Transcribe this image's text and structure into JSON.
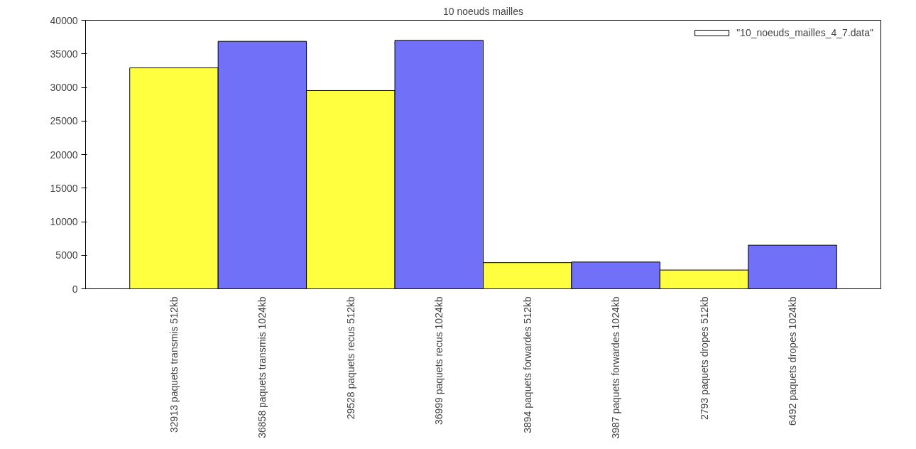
{
  "chart_data": {
    "type": "bar",
    "title": "10 noeuds mailles",
    "categories": [
      "32913 paquets transmis 512kb",
      "36858 paquets transmis 1024kb",
      "29528 paquets recus 512kb",
      "36999 paquets recus 1024kb",
      "3894 paquets forwardes 512kb",
      "3987 paquets forwardes 1024kb",
      "2793 paquets dropes 512kb",
      "6492 paquets dropes 1024kb"
    ],
    "series": [
      {
        "name": "\"10_noeuds_mailles_4_7.data\"",
        "color": "#ffffff",
        "colors": [
          "#ffff40",
          "#7070f8",
          "#ffff40",
          "#7070f8",
          "#ffff40",
          "#7070f8",
          "#ffff40",
          "#7070f8"
        ],
        "values": [
          32913,
          36858,
          29528,
          36999,
          3894,
          3987,
          2793,
          6492
        ]
      }
    ],
    "ylim": [
      0,
      40000
    ],
    "yticks": [
      0,
      5000,
      10000,
      15000,
      20000,
      25000,
      30000,
      35000,
      40000
    ],
    "grid": false,
    "legend": "top right"
  }
}
